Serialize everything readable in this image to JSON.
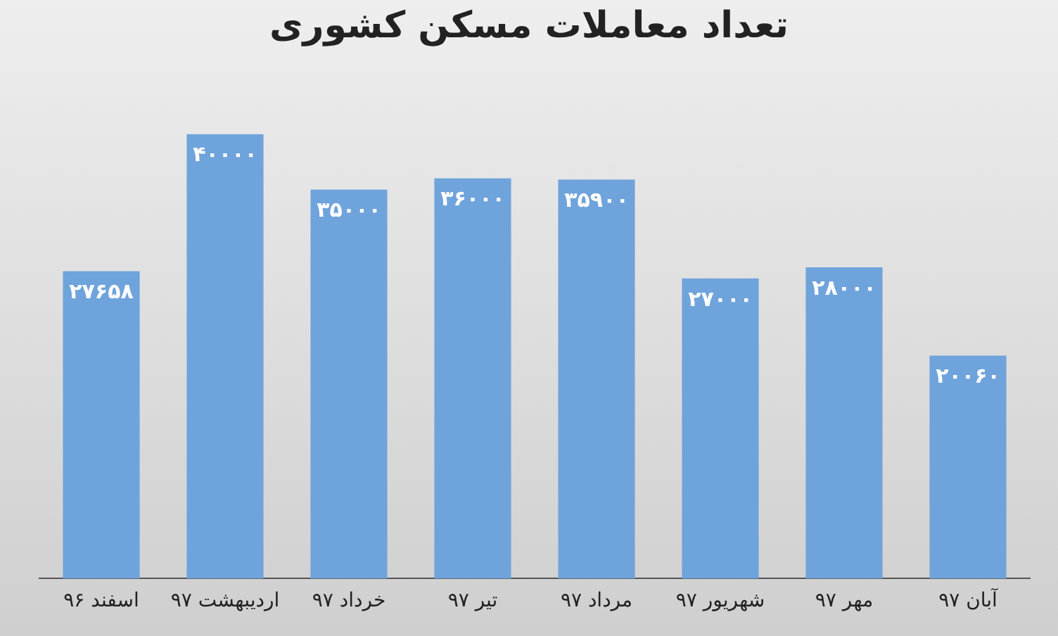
{
  "chart_data": {
    "type": "bar",
    "title": "تعداد معاملات مسکن کشوری",
    "categories": [
      "اسفند ۹۶",
      "اردیبهشت ۹۷",
      "خرداد ۹۷",
      "تیر ۹۷",
      "مرداد ۹۷",
      "شهریور ۹۷",
      "مهر ۹۷",
      "آبان ۹۷"
    ],
    "values": [
      27658,
      40000,
      35000,
      36000,
      35900,
      27000,
      28000,
      20060
    ],
    "value_labels": [
      "۲۷۶۵۸",
      "۴۰۰۰۰",
      "۳۵۰۰۰",
      "۳۶۰۰۰",
      "۳۵۹۰۰",
      "۲۷۰۰۰",
      "۲۸۰۰۰",
      "۲۰۰۶۰"
    ],
    "color": "#6fa3dc",
    "relative": false,
    "grid": false,
    "legend": false
  }
}
